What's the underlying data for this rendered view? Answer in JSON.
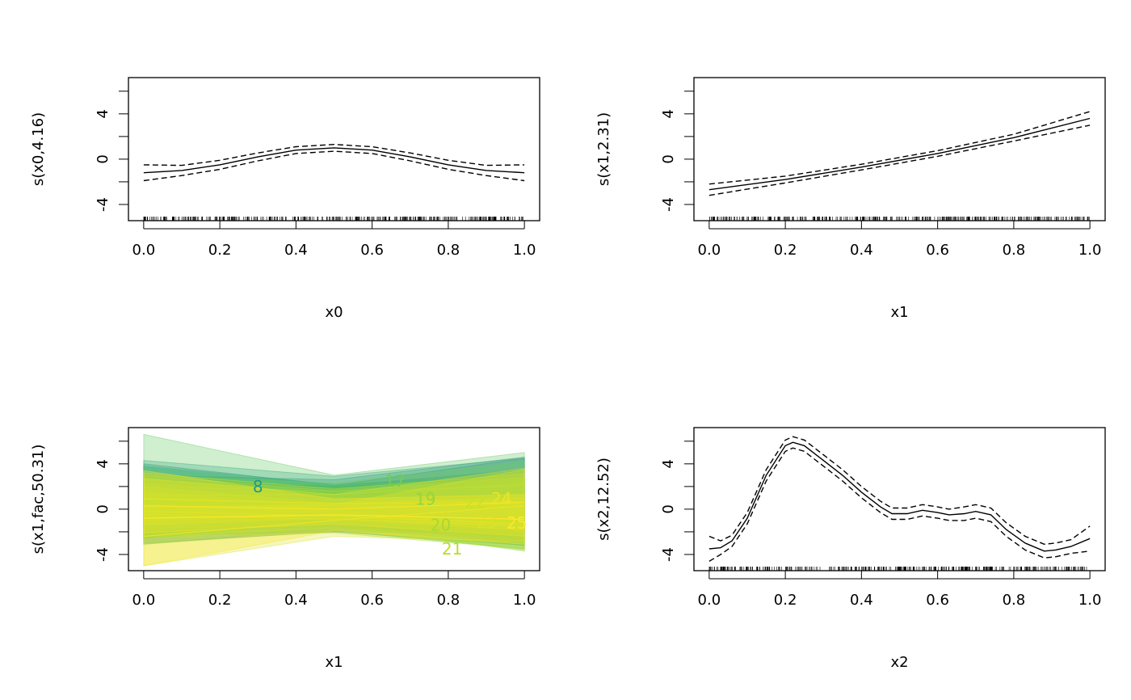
{
  "chart_data": [
    {
      "type": "line",
      "xlabel": "x0",
      "ylabel": "s(x0,4.16)",
      "xlim": [
        -0.04,
        1.04
      ],
      "ylim": [
        -5.43,
        7.2
      ],
      "x_ticks": [
        "0.0",
        "0.2",
        "0.4",
        "0.6",
        "0.8",
        "1.0"
      ],
      "y_ticks": [
        "-4",
        "0",
        "4"
      ],
      "y_minor_ticks": [
        -4,
        -2,
        0,
        2,
        4,
        6
      ],
      "rug": true,
      "x": [
        0,
        0.1,
        0.2,
        0.3,
        0.4,
        0.5,
        0.6,
        0.7,
        0.8,
        0.9,
        1.0
      ],
      "fit": [
        -1.2,
        -1.0,
        -0.5,
        0.2,
        0.8,
        1.0,
        0.8,
        0.2,
        -0.5,
        -1.0,
        -1.2
      ],
      "upper": [
        -0.5,
        -0.55,
        -0.1,
        0.55,
        1.1,
        1.3,
        1.1,
        0.55,
        -0.1,
        -0.55,
        -0.5
      ],
      "lower": [
        -1.9,
        -1.45,
        -0.9,
        -0.15,
        0.5,
        0.7,
        0.5,
        -0.15,
        -0.9,
        -1.45,
        -1.9
      ]
    },
    {
      "type": "line",
      "xlabel": "x1",
      "ylabel": "s(x1,2.31)",
      "xlim": [
        -0.04,
        1.04
      ],
      "ylim": [
        -5.43,
        7.2
      ],
      "x_ticks": [
        "0.0",
        "0.2",
        "0.4",
        "0.6",
        "0.8",
        "1.0"
      ],
      "y_ticks": [
        "-4",
        "0",
        "4"
      ],
      "y_minor_ticks": [
        -4,
        -2,
        0,
        2,
        4,
        6
      ],
      "rug": true,
      "x": [
        0,
        0.2,
        0.4,
        0.6,
        0.8,
        1.0
      ],
      "fit": [
        -2.7,
        -1.8,
        -0.7,
        0.5,
        1.9,
        3.6
      ],
      "upper": [
        -2.2,
        -1.5,
        -0.45,
        0.75,
        2.2,
        4.2
      ],
      "lower": [
        -3.2,
        -2.1,
        -0.95,
        0.25,
        1.6,
        3.0
      ]
    },
    {
      "type": "area",
      "xlabel": "x1",
      "ylabel": "s(x1,fac,50.31)",
      "xlim": [
        -0.04,
        1.04
      ],
      "ylim": [
        -5.43,
        7.2
      ],
      "x_ticks": [
        "0.0",
        "0.2",
        "0.4",
        "0.6",
        "0.8",
        "1.0"
      ],
      "y_ticks": [
        "-4",
        "0",
        "4"
      ],
      "y_minor_ticks": [
        -4,
        -2,
        0,
        2,
        4,
        6
      ],
      "colormap": "viridis",
      "x": [
        0,
        0.5,
        1.0
      ],
      "series": [
        {
          "fit": [
            -0.5,
            -0.6,
            0.4
          ],
          "se": [
            2.5,
            1.4,
            2.5
          ]
        },
        {
          "fit": [
            0.6,
            0.0,
            -0.6
          ],
          "se": [
            2.3,
            1.3,
            2.4
          ]
        },
        {
          "fit": [
            1.0,
            0.6,
            1.0
          ],
          "se": [
            3.0,
            1.5,
            3.5
          ]
        },
        {
          "fit": [
            1.5,
            1.8,
            3.0
          ],
          "se": [
            1.5,
            0.8,
            1.6
          ]
        },
        {
          "fit": [
            0.0,
            0.5,
            0.5
          ],
          "se": [
            2.5,
            1.5,
            3.0
          ]
        },
        {
          "fit": [
            -0.3,
            -0.8,
            -1.0
          ],
          "se": [
            2.0,
            1.2,
            2.2
          ]
        },
        {
          "fit": [
            0.9,
            0.4,
            -0.2
          ],
          "se": [
            2.2,
            1.3,
            2.5
          ]
        },
        {
          "fit": [
            2.5,
            2.0,
            2.5
          ],
          "se": [
            1.8,
            0.9,
            2.0
          ]
        },
        {
          "fit": [
            0.2,
            -0.3,
            -0.8
          ],
          "se": [
            2.2,
            1.2,
            2.4
          ]
        },
        {
          "fit": [
            1.8,
            1.2,
            1.0
          ],
          "se": [
            2.0,
            1.0,
            2.0
          ]
        },
        {
          "fit": [
            -1.0,
            -0.5,
            0.0
          ],
          "se": [
            2.1,
            1.2,
            2.2
          ]
        },
        {
          "fit": [
            0.5,
            0.2,
            -0.5
          ],
          "se": [
            2.2,
            1.3,
            2.5
          ]
        },
        {
          "fit": [
            -0.2,
            0.3,
            0.8
          ],
          "se": [
            2.4,
            1.4,
            2.6
          ]
        },
        {
          "fit": [
            1.5,
            0.8,
            0.3
          ],
          "se": [
            2.2,
            1.2,
            2.3
          ]
        },
        {
          "fit": [
            -0.8,
            -0.6,
            -1.2
          ],
          "se": [
            2.3,
            1.3,
            2.3
          ]
        },
        {
          "fit": [
            2.0,
            1.6,
            2.0
          ],
          "se": [
            4.6,
            1.4,
            3.0
          ]
        },
        {
          "fit": [
            1.2,
            1.3,
            2.2
          ],
          "se": [
            1.8,
            1.0,
            2.0
          ]
        },
        {
          "fit": [
            0.3,
            -0.2,
            -1.5
          ],
          "se": [
            2.0,
            1.2,
            2.2
          ]
        },
        {
          "fit": [
            1.0,
            0.5,
            0.6
          ],
          "se": [
            2.0,
            1.1,
            2.2
          ]
        },
        {
          "fit": [
            -0.5,
            -0.9,
            -1.5
          ],
          "se": [
            2.0,
            1.2,
            2.0
          ]
        },
        {
          "fit": [
            -0.2,
            -0.6,
            -1.3
          ],
          "se": [
            2.2,
            1.1,
            2.3
          ]
        },
        {
          "fit": [
            0.9,
            0.5,
            0.6
          ],
          "se": [
            2.3,
            1.3,
            2.5
          ]
        },
        {
          "fit": [
            -2.4,
            -1.0,
            0.3
          ],
          "se": [
            2.6,
            1.4,
            3.2
          ]
        },
        {
          "fit": [
            0.3,
            0.0,
            0.6
          ],
          "se": [
            2.4,
            1.3,
            3.0
          ]
        },
        {
          "fit": [
            -0.8,
            -0.5,
            -0.9
          ],
          "se": [
            4.2,
            1.4,
            2.2
          ]
        }
      ],
      "labels": [
        {
          "text": "8",
          "x": 0.3,
          "y": 2.0,
          "level": 8
        },
        {
          "text": "17",
          "x": 0.66,
          "y": 2.5,
          "level": 17
        },
        {
          "text": "19",
          "x": 0.74,
          "y": 0.9,
          "level": 19
        },
        {
          "text": "20",
          "x": 0.78,
          "y": -1.4,
          "level": 20
        },
        {
          "text": "21",
          "x": 0.81,
          "y": -1.8,
          "level": 21
        },
        {
          "text": "22",
          "x": 0.87,
          "y": 0.6,
          "level": 22
        },
        {
          "text": "23",
          "x": 0.9,
          "y": 0.1,
          "level": 23
        },
        {
          "text": "24",
          "x": 0.94,
          "y": 0.5,
          "level": 24
        },
        {
          "text": "25",
          "x": 0.98,
          "y": -0.8,
          "level": 25
        }
      ]
    },
    {
      "type": "line",
      "xlabel": "x2",
      "ylabel": "s(x2,12.52)",
      "xlim": [
        -0.04,
        1.04
      ],
      "ylim": [
        -5.43,
        7.2
      ],
      "x_ticks": [
        "0.0",
        "0.2",
        "0.4",
        "0.6",
        "0.8",
        "1.0"
      ],
      "y_ticks": [
        "-4",
        "0",
        "4"
      ],
      "y_minor_ticks": [
        -4,
        -2,
        0,
        2,
        4,
        6
      ],
      "rug": true,
      "x": [
        0,
        0.03,
        0.06,
        0.1,
        0.15,
        0.2,
        0.22,
        0.25,
        0.3,
        0.35,
        0.4,
        0.45,
        0.48,
        0.52,
        0.56,
        0.6,
        0.63,
        0.67,
        0.7,
        0.74,
        0.78,
        0.83,
        0.88,
        0.91,
        0.95,
        1.0
      ],
      "fit": [
        -3.5,
        -3.4,
        -2.8,
        -0.8,
        3.0,
        5.6,
        5.9,
        5.6,
        4.3,
        3.0,
        1.5,
        0.2,
        -0.4,
        -0.4,
        -0.1,
        -0.3,
        -0.5,
        -0.4,
        -0.2,
        -0.5,
        -1.8,
        -3.0,
        -3.7,
        -3.6,
        -3.3,
        -2.6
      ],
      "upper": [
        -2.4,
        -2.8,
        -2.3,
        -0.3,
        3.5,
        6.1,
        6.4,
        6.1,
        4.8,
        3.5,
        2.0,
        0.7,
        0.1,
        0.1,
        0.4,
        0.2,
        0.0,
        0.2,
        0.4,
        0.1,
        -1.2,
        -2.4,
        -3.1,
        -3.0,
        -2.7,
        -1.5
      ],
      "lower": [
        -4.6,
        -4.0,
        -3.3,
        -1.3,
        2.5,
        5.1,
        5.4,
        5.1,
        3.8,
        2.5,
        1.0,
        -0.3,
        -0.9,
        -0.9,
        -0.6,
        -0.8,
        -1.0,
        -1.0,
        -0.8,
        -1.1,
        -2.4,
        -3.6,
        -4.3,
        -4.2,
        -3.9,
        -3.7
      ]
    }
  ]
}
